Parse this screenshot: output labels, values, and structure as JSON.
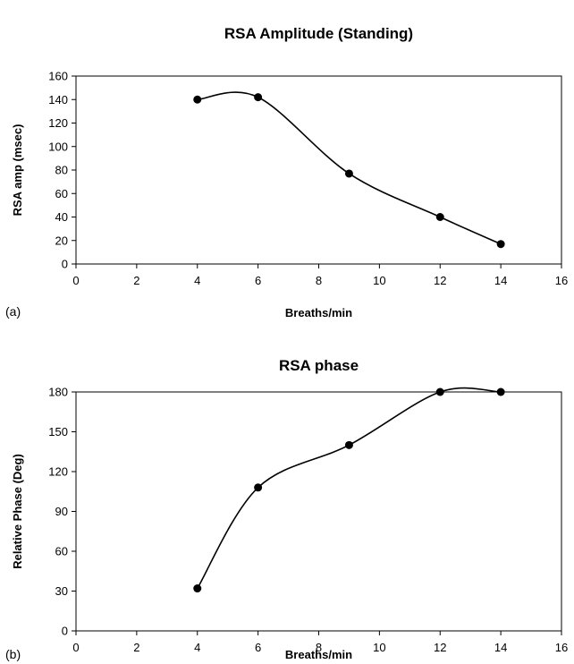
{
  "chart_data": [
    {
      "type": "line",
      "panel_label": "(a)",
      "title": "RSA Amplitude (Standing)",
      "xlabel": "Breaths/min",
      "ylabel": "RSA amp (msec)",
      "xlim": [
        0,
        16
      ],
      "ylim": [
        0,
        160
      ],
      "xticks": [
        0,
        2,
        4,
        6,
        8,
        10,
        12,
        14,
        16
      ],
      "yticks": [
        0,
        20,
        40,
        60,
        80,
        100,
        120,
        140,
        160
      ],
      "smooth": true,
      "series": [
        {
          "x": [
            4,
            6,
            9,
            12,
            14
          ],
          "y": [
            140,
            142,
            77,
            40,
            17
          ]
        }
      ]
    },
    {
      "type": "line",
      "panel_label": "(b)",
      "title": "RSA phase",
      "xlabel": "Breaths/min",
      "ylabel": "Relative Phase (Deg)",
      "xlim": [
        0,
        16
      ],
      "ylim": [
        0,
        180
      ],
      "xticks": [
        0,
        2,
        4,
        6,
        8,
        10,
        12,
        14,
        16
      ],
      "yticks": [
        0,
        30,
        60,
        90,
        120,
        150,
        180
      ],
      "smooth": true,
      "series": [
        {
          "x": [
            4,
            6,
            9,
            12,
            14
          ],
          "y": [
            32,
            108,
            140,
            180,
            180
          ]
        }
      ]
    }
  ]
}
